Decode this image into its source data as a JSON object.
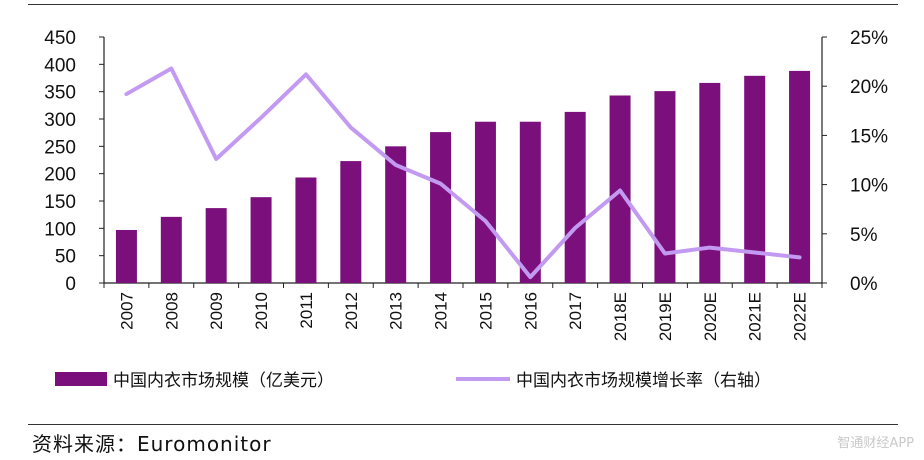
{
  "chart_data": {
    "type": "bar",
    "categories": [
      "2007",
      "2008",
      "2009",
      "2010",
      "2011",
      "2012",
      "2013",
      "2014",
      "2015",
      "2016",
      "2017",
      "2018E",
      "2019E",
      "2020E",
      "2021E",
      "2022E"
    ],
    "series": [
      {
        "name": "中国内衣市场规模（亿美元）",
        "type": "bar",
        "axis": "left",
        "color": "#7b0f7b",
        "values": [
          97,
          121,
          137,
          157,
          193,
          223,
          250,
          276,
          295,
          295,
          313,
          343,
          351,
          366,
          379,
          388
        ]
      },
      {
        "name": "中国内衣市场规模增长率（右轴）",
        "type": "line",
        "axis": "right",
        "color": "#c39af2",
        "values": [
          19.2,
          21.8,
          12.6,
          16.8,
          21.2,
          15.8,
          12.0,
          10.1,
          6.3,
          0.6,
          5.6,
          9.4,
          3.0,
          3.6,
          3.1,
          2.6
        ]
      }
    ],
    "y_left": {
      "ylim": [
        0,
        450
      ],
      "ticks": [
        "0",
        "50",
        "100",
        "150",
        "200",
        "250",
        "300",
        "350",
        "400",
        "450"
      ]
    },
    "y_right": {
      "ylim": [
        0,
        25
      ],
      "ticks": [
        "0%",
        "5%",
        "10%",
        "15%",
        "20%",
        "25%"
      ]
    },
    "legend_position": "bottom",
    "grid": false
  },
  "source": "资料来源：Euromonitor",
  "watermark": "智通财经APP"
}
